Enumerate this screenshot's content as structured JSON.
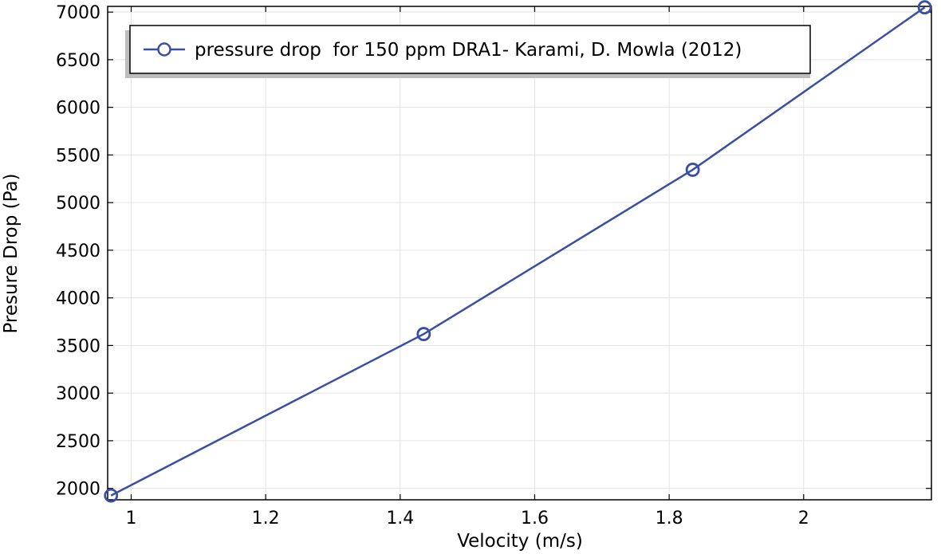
{
  "chart_data": {
    "type": "line",
    "title": "",
    "xlabel": "Velocity (m/s)",
    "ylabel": "Presure Drop (Pa)",
    "xlim": [
      0.965,
      2.19
    ],
    "ylim": [
      1880,
      7060
    ],
    "xticks": [
      1,
      1.2,
      1.4,
      1.6,
      1.8,
      2
    ],
    "xtick_labels": [
      "1",
      "1.2",
      "1.4",
      "1.6",
      "1.8",
      "2"
    ],
    "yticks": [
      2000,
      2500,
      3000,
      3500,
      4000,
      4500,
      5000,
      5500,
      6000,
      6500,
      7000
    ],
    "ytick_labels": [
      "2000",
      "2500",
      "3000",
      "3500",
      "4000",
      "4500",
      "5000",
      "5500",
      "6000",
      "6500",
      "7000"
    ],
    "grid": true,
    "legend_position": "top-left",
    "series": [
      {
        "name": "pressure drop  for 150 ppm DRA1- Karami, D. Mowla (2012)",
        "color": "#3a4fa3",
        "marker": "circle-open",
        "x": [
          0.97,
          1.435,
          1.835,
          2.18
        ],
        "y": [
          1925,
          3620,
          5345,
          7050
        ]
      }
    ]
  }
}
